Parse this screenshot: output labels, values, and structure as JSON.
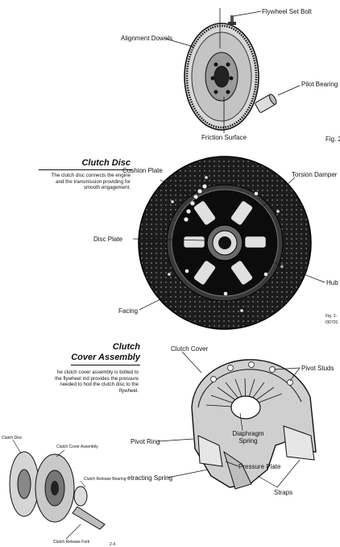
{
  "flywheel": {
    "labels": {
      "set_bolt": "Flywheel Set Bolt",
      "alignment_dowels": "Alignment Dowels",
      "pilot_bearing": "Pilot Bearing",
      "friction_surface": "Friction Surface"
    },
    "fig": "Fig. 2"
  },
  "clutch_disc": {
    "title": "Clutch Disc",
    "description": "The clutch disc connects the engine and the transmission providing for smooth engagement.",
    "labels": {
      "cushion_plate": "Cushion Plate",
      "torsion_damper": "Torsion Damper",
      "disc_plate": "Disc Plate",
      "hub": "Hub",
      "facing": "Facing"
    },
    "fig": "Fig. 2-",
    "fig_code": "f30720"
  },
  "cover_assembly": {
    "title_line1": "Clutch",
    "title_line2": "Cover Assembly",
    "description": "he clutch cover assembly is bolted to the flywheel ind provides the pressure needed to hod the clutch disc to the flywheel.",
    "labels": {
      "clutch_cover": "Clutch Cover",
      "pivot_studs": "Pivot Studs",
      "pivot_ring": "Pivot Ring",
      "diaphragm_spring": "Diaphragm Spring",
      "pressure_plate": "Pressure Plate",
      "retracting_spring": "etracting Spring",
      "straps": "Straps"
    }
  },
  "exploded": {
    "labels": {
      "clutch_disc": "Clutch Disc",
      "clutch_cover_assembly": "Clutch Cover Assembly",
      "clutch_release_bearing": "Clutch Release Bearing",
      "clutch_release_fork": "Clutch Release Fork"
    }
  },
  "page_number": "2-4"
}
